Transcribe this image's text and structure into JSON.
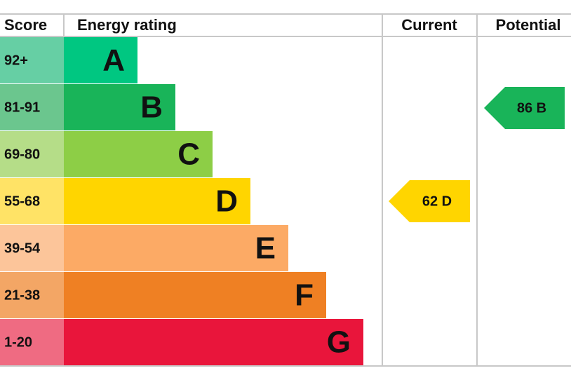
{
  "header": {
    "score": "Score",
    "energy_rating": "Energy rating",
    "current": "Current",
    "potential": "Potential"
  },
  "rows": [
    {
      "score": "92+",
      "letter": "A"
    },
    {
      "score": "81-91",
      "letter": "B"
    },
    {
      "score": "69-80",
      "letter": "C"
    },
    {
      "score": "55-68",
      "letter": "D"
    },
    {
      "score": "39-54",
      "letter": "E"
    },
    {
      "score": "21-38",
      "letter": "F"
    },
    {
      "score": "1-20",
      "letter": "G"
    }
  ],
  "current": "62 D",
  "potential": "86 B"
}
